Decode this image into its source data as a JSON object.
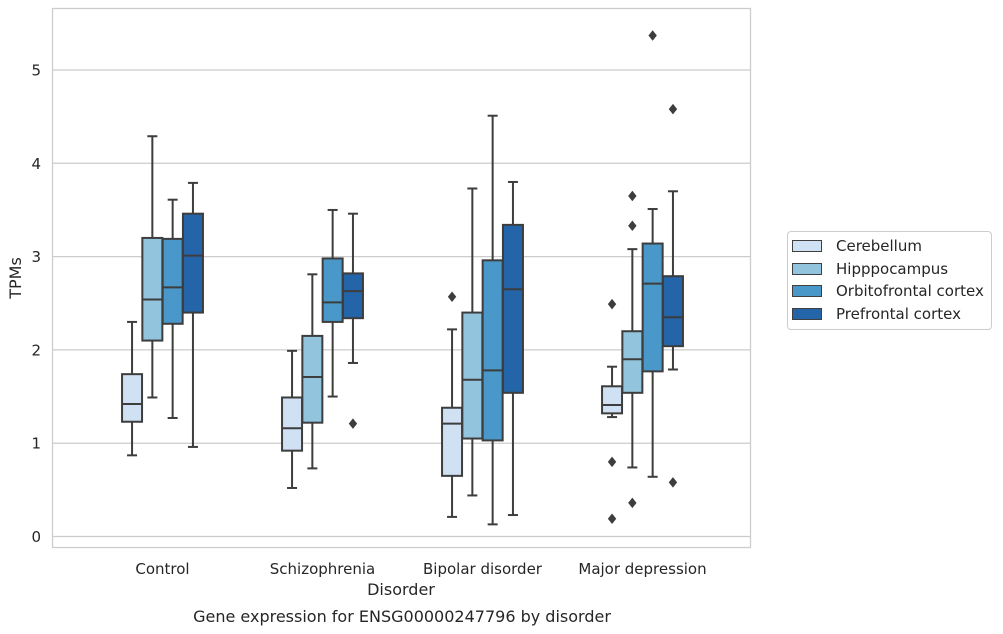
{
  "chart_data": {
    "type": "box",
    "title": "Gene expression for ENSG00000247796 by disorder",
    "xlabel": "Disorder",
    "ylabel": "TPMs",
    "ylim": [
      -0.12,
      5.65
    ],
    "yticks": [
      0,
      1,
      2,
      3,
      4,
      5
    ],
    "grid": true,
    "legend_position": "right",
    "categories": [
      "Control",
      "Schizophrenia",
      "Bipolar disorder",
      "Major depression"
    ],
    "series": [
      {
        "name": "Cerebellum",
        "color": "#cfe1f2",
        "boxes": [
          {
            "whislo": 0.87,
            "q1": 1.23,
            "med": 1.42,
            "q3": 1.74,
            "whishi": 2.3,
            "fliers": []
          },
          {
            "whislo": 0.52,
            "q1": 0.92,
            "med": 1.16,
            "q3": 1.49,
            "whishi": 1.99,
            "fliers": []
          },
          {
            "whislo": 0.21,
            "q1": 0.65,
            "med": 1.21,
            "q3": 1.38,
            "whishi": 2.22,
            "fliers": [
              2.57
            ]
          },
          {
            "whislo": 1.28,
            "q1": 1.32,
            "med": 1.41,
            "q3": 1.61,
            "whishi": 1.82,
            "fliers": [
              2.49,
              0.8,
              0.19
            ]
          }
        ]
      },
      {
        "name": "Hipppocampus",
        "color": "#93c4de",
        "boxes": [
          {
            "whislo": 1.49,
            "q1": 2.1,
            "med": 2.54,
            "q3": 3.2,
            "whishi": 4.29,
            "fliers": []
          },
          {
            "whislo": 0.73,
            "q1": 1.22,
            "med": 1.71,
            "q3": 2.15,
            "whishi": 2.81,
            "fliers": []
          },
          {
            "whislo": 0.44,
            "q1": 1.05,
            "med": 1.68,
            "q3": 2.4,
            "whishi": 3.73,
            "fliers": []
          },
          {
            "whislo": 0.74,
            "q1": 1.54,
            "med": 1.9,
            "q3": 2.2,
            "whishi": 3.08,
            "fliers": [
              3.65,
              3.33,
              0.36
            ]
          }
        ]
      },
      {
        "name": "Orbitofrontal cortex",
        "color": "#4a98c9",
        "boxes": [
          {
            "whislo": 1.27,
            "q1": 2.28,
            "med": 2.67,
            "q3": 3.19,
            "whishi": 3.61,
            "fliers": []
          },
          {
            "whislo": 1.5,
            "q1": 2.3,
            "med": 2.51,
            "q3": 2.98,
            "whishi": 3.5,
            "fliers": []
          },
          {
            "whislo": 0.13,
            "q1": 1.03,
            "med": 1.78,
            "q3": 2.96,
            "whishi": 4.51,
            "fliers": []
          },
          {
            "whislo": 0.64,
            "q1": 1.77,
            "med": 2.71,
            "q3": 3.14,
            "whishi": 3.51,
            "fliers": [
              5.37
            ]
          }
        ]
      },
      {
        "name": "Prefrontal cortex",
        "color": "#2464a8",
        "boxes": [
          {
            "whislo": 0.96,
            "q1": 2.4,
            "med": 3.01,
            "q3": 3.46,
            "whishi": 3.79,
            "fliers": []
          },
          {
            "whislo": 1.86,
            "q1": 2.34,
            "med": 2.63,
            "q3": 2.82,
            "whishi": 3.46,
            "fliers": [
              1.21
            ]
          },
          {
            "whislo": 0.23,
            "q1": 1.54,
            "med": 2.65,
            "q3": 3.34,
            "whishi": 3.8,
            "fliers": []
          },
          {
            "whislo": 1.79,
            "q1": 2.04,
            "med": 2.35,
            "q3": 2.79,
            "whishi": 3.7,
            "fliers": [
              4.58,
              0.58
            ]
          }
        ]
      }
    ]
  }
}
